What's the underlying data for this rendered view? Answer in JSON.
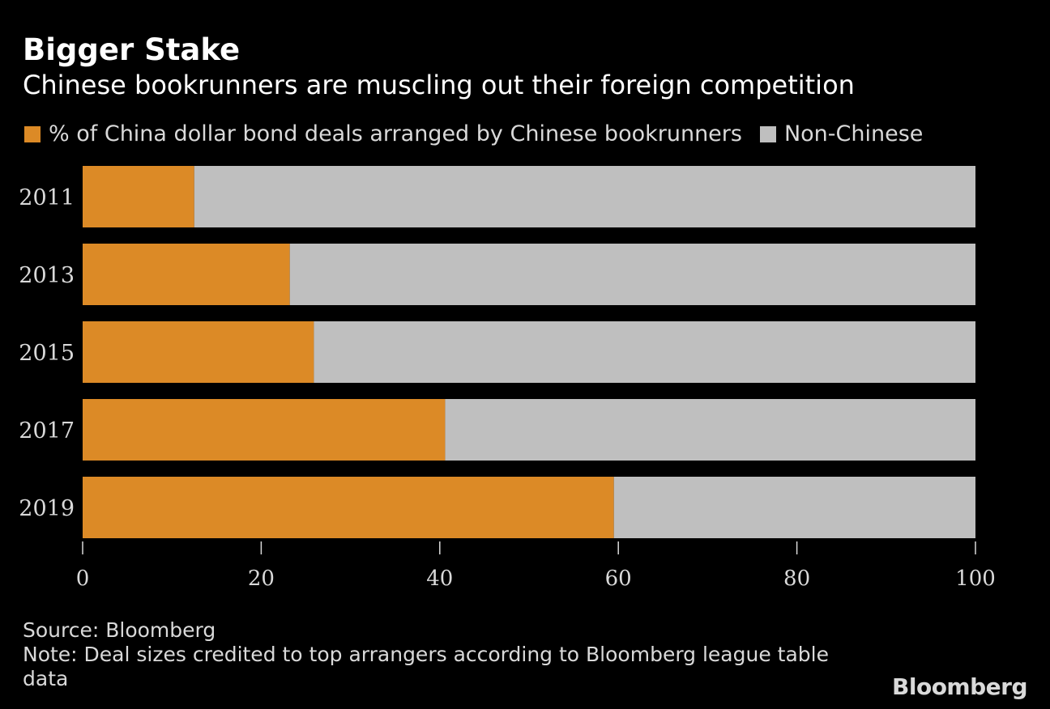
{
  "chart_data": {
    "type": "bar",
    "orientation": "horizontal",
    "stacked": true,
    "title": "Bigger Stake",
    "subtitle": "Chinese bookrunners are muscling out their foreign competition",
    "categories": [
      "2011",
      "2013",
      "2015",
      "2017",
      "2019"
    ],
    "series": [
      {
        "name": "% of China dollar bond deals arranged by Chinese bookrunners",
        "color": "#dc8a26",
        "values": [
          12.5,
          23.2,
          25.9,
          40.6,
          59.5
        ]
      },
      {
        "name": "Non-Chinese",
        "color": "#bfbfbf",
        "values": [
          87.5,
          76.8,
          74.1,
          59.4,
          40.5
        ]
      }
    ],
    "xlim": [
      0,
      100
    ],
    "xticks": [
      "0",
      "20",
      "40",
      "60",
      "80",
      "100"
    ],
    "xlabel": "",
    "ylabel": ""
  },
  "footer": {
    "source": "Source: Bloomberg",
    "note": "Note: Deal sizes credited to top arrangers according to Bloomberg league table data"
  },
  "brand": "Bloomberg",
  "colors": {
    "background": "#000000",
    "text": "#ffffff",
    "muted": "#d9d9d9"
  }
}
